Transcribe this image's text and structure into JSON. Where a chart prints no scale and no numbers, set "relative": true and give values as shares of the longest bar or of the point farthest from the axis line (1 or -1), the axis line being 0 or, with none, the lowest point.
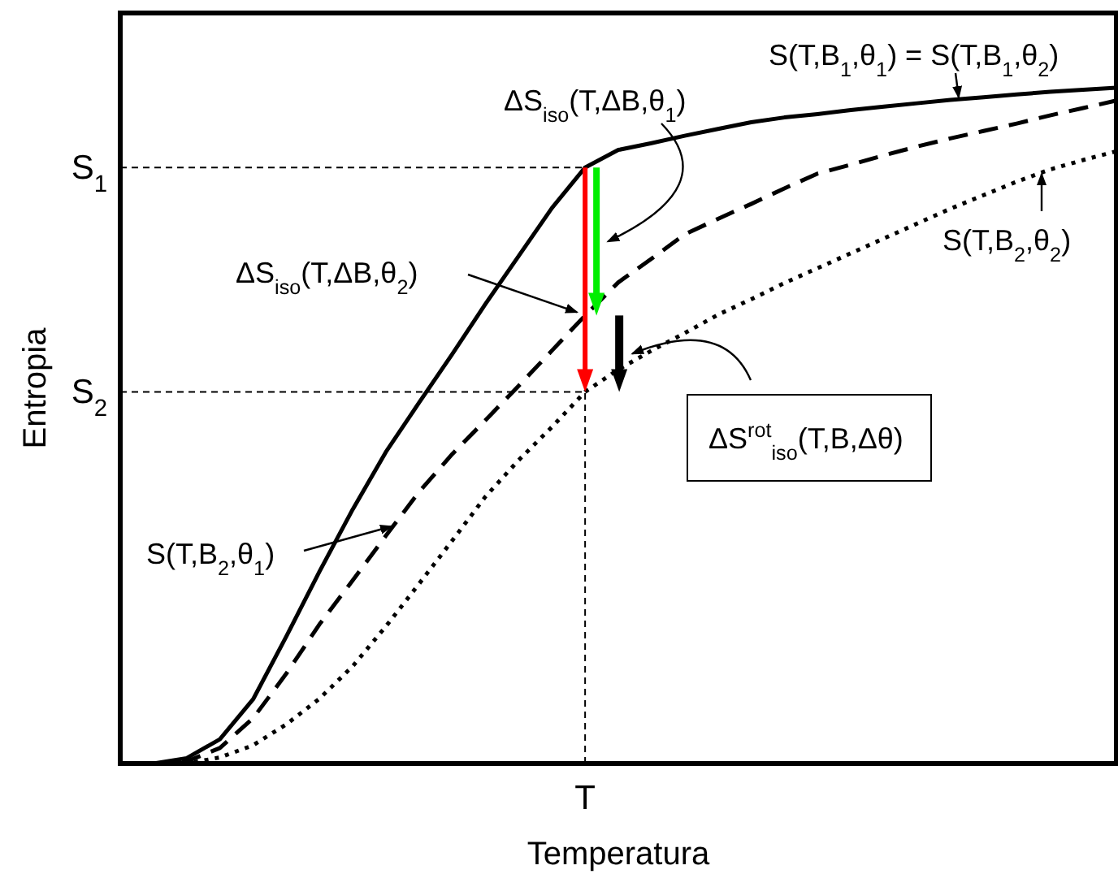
{
  "chart_data": {
    "type": "line",
    "relative": true,
    "xlabel": "Temperatura",
    "ylabel": "Entropia",
    "categories": [
      null,
      null,
      null,
      null,
      null,
      null,
      null,
      null,
      null,
      null,
      null,
      null,
      null,
      null,
      null,
      null,
      null,
      null,
      null,
      null,
      null,
      null,
      null,
      null,
      null,
      null,
      null,
      null,
      null,
      null,
      null
    ],
    "series": [
      {
        "color": "#000000",
        "line_style": "solid",
        "values": [
          0,
          0,
          0.008,
          0.036,
          0.095,
          0.188,
          0.284,
          0.376,
          0.461,
          0.534,
          0.606,
          0.68,
          0.751,
          0.822,
          0.882,
          0.908,
          0.918,
          0.929,
          0.939,
          0.949,
          0.956,
          0.961,
          0.967,
          0.972,
          0.977,
          0.982,
          0.986,
          0.99,
          0.994,
          0.997,
          1
        ]
      },
      {
        "color": "#000000",
        "line_style": "dashed",
        "values": [
          0,
          0,
          0.003,
          0.023,
          0.067,
          0.133,
          0.206,
          0.271,
          0.337,
          0.402,
          0.458,
          0.508,
          0.559,
          0.611,
          0.663,
          0.712,
          0.747,
          0.783,
          0.806,
          0.828,
          0.851,
          0.873,
          0.886,
          0.9,
          0.913,
          0.925,
          0.936,
          0.947,
          0.959,
          0.97,
          0.981
        ]
      },
      {
        "color": "#000000",
        "line_style": "dotted",
        "values": [
          0,
          0,
          0,
          0.009,
          0.027,
          0.058,
          0.096,
          0.144,
          0.203,
          0.266,
          0.33,
          0.395,
          0.449,
          0.498,
          0.55,
          0.583,
          0.611,
          0.637,
          0.664,
          0.687,
          0.711,
          0.733,
          0.755,
          0.777,
          0.799,
          0.821,
          0.841,
          0.861,
          0.879,
          0.893,
          0.906
        ]
      }
    ],
    "ref_lines": [
      {
        "axis": "y",
        "value": 0.882,
        "label": "S$_{1}$",
        "line_style": "dashed"
      },
      {
        "axis": "y",
        "value": 0.55,
        "label": "S$_{2}$",
        "line_style": "dashed"
      }
    ],
    "annotations": [
      "S(T,B$_{1}$,θ$_{1}$) = S(T,B$_{1}$,θ$_{2}$)",
      "ΔS$_{iso}$(T,ΔB,θ$_{1}$)",
      "ΔS$_{iso}$(T,ΔB,θ$_{2}$)",
      "S(T,B$_{2}$,θ$_{2}$)",
      "ΔS$^{rot}$$_{iso}$(T,B,Δθ)",
      "S(T,B$_{2}$,θ$_{1}$)",
      "T"
    ]
  }
}
